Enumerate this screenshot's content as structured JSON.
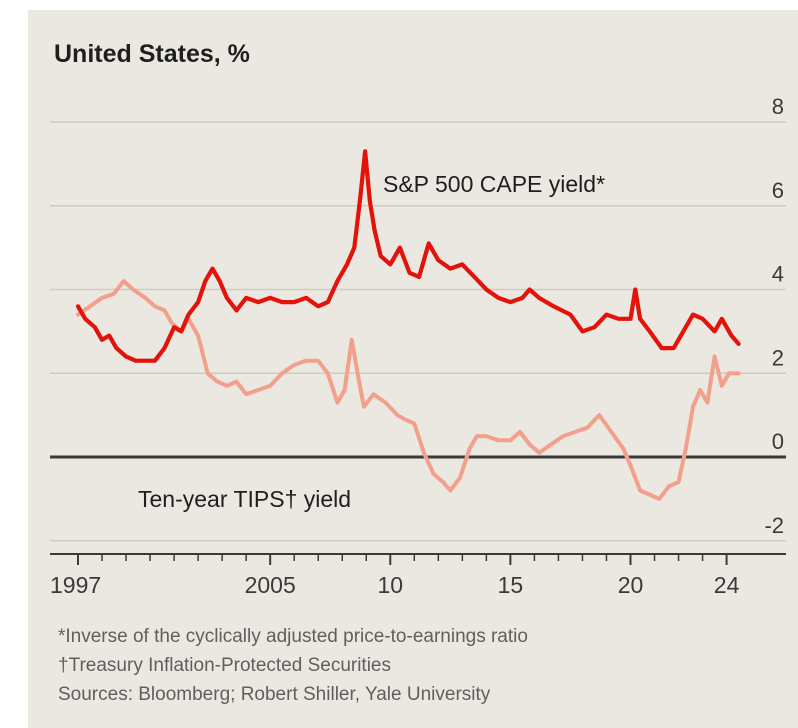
{
  "chart_data": {
    "type": "line",
    "title": "United States, %",
    "y_ticks": [
      8,
      6,
      4,
      2,
      0,
      -2
    ],
    "y_tick_labels": [
      "8",
      "6",
      "4",
      "2",
      "0",
      "-2"
    ],
    "ylim": [
      -2.5,
      8.2
    ],
    "xlim": [
      1997,
      2024.6
    ],
    "x_tick_labels": [
      {
        "year": 1997,
        "label": "1997"
      },
      {
        "year": 2005,
        "label": "2005"
      },
      {
        "year": 2010,
        "label": "10"
      },
      {
        "year": 2015,
        "label": "15"
      },
      {
        "year": 2020,
        "label": "20"
      },
      {
        "year": 2024,
        "label": "24"
      }
    ],
    "grid": true,
    "series": [
      {
        "name": "S&P 500 CAPE yield*",
        "color": "#e3120b",
        "points": [
          [
            1997.0,
            3.6
          ],
          [
            1997.3,
            3.3
          ],
          [
            1997.7,
            3.1
          ],
          [
            1998.0,
            2.8
          ],
          [
            1998.3,
            2.9
          ],
          [
            1998.6,
            2.6
          ],
          [
            1999.0,
            2.4
          ],
          [
            1999.4,
            2.3
          ],
          [
            1999.8,
            2.3
          ],
          [
            2000.2,
            2.3
          ],
          [
            2000.6,
            2.6
          ],
          [
            2001.0,
            3.1
          ],
          [
            2001.3,
            3.0
          ],
          [
            2001.6,
            3.4
          ],
          [
            2002.0,
            3.7
          ],
          [
            2002.3,
            4.2
          ],
          [
            2002.6,
            4.5
          ],
          [
            2002.9,
            4.2
          ],
          [
            2003.2,
            3.8
          ],
          [
            2003.6,
            3.5
          ],
          [
            2004.0,
            3.8
          ],
          [
            2004.5,
            3.7
          ],
          [
            2005.0,
            3.8
          ],
          [
            2005.5,
            3.7
          ],
          [
            2006.0,
            3.7
          ],
          [
            2006.5,
            3.8
          ],
          [
            2007.0,
            3.6
          ],
          [
            2007.4,
            3.7
          ],
          [
            2007.8,
            4.2
          ],
          [
            2008.2,
            4.6
          ],
          [
            2008.5,
            5.0
          ],
          [
            2008.75,
            6.2
          ],
          [
            2008.95,
            7.3
          ],
          [
            2009.15,
            6.1
          ],
          [
            2009.35,
            5.4
          ],
          [
            2009.6,
            4.8
          ],
          [
            2010.0,
            4.6
          ],
          [
            2010.4,
            5.0
          ],
          [
            2010.8,
            4.4
          ],
          [
            2011.2,
            4.3
          ],
          [
            2011.6,
            5.1
          ],
          [
            2012.0,
            4.7
          ],
          [
            2012.5,
            4.5
          ],
          [
            2013.0,
            4.6
          ],
          [
            2013.5,
            4.3
          ],
          [
            2014.0,
            4.0
          ],
          [
            2014.5,
            3.8
          ],
          [
            2015.0,
            3.7
          ],
          [
            2015.5,
            3.8
          ],
          [
            2015.8,
            4.0
          ],
          [
            2016.2,
            3.8
          ],
          [
            2016.8,
            3.6
          ],
          [
            2017.5,
            3.4
          ],
          [
            2018.0,
            3.0
          ],
          [
            2018.5,
            3.1
          ],
          [
            2019.0,
            3.4
          ],
          [
            2019.5,
            3.3
          ],
          [
            2020.0,
            3.3
          ],
          [
            2020.2,
            4.0
          ],
          [
            2020.4,
            3.3
          ],
          [
            2020.8,
            3.0
          ],
          [
            2021.3,
            2.6
          ],
          [
            2021.8,
            2.6
          ],
          [
            2022.2,
            3.0
          ],
          [
            2022.6,
            3.4
          ],
          [
            2023.0,
            3.3
          ],
          [
            2023.5,
            3.0
          ],
          [
            2023.8,
            3.3
          ],
          [
            2024.2,
            2.9
          ],
          [
            2024.5,
            2.7
          ]
        ]
      },
      {
        "name": "Ten-year TIPS† yield",
        "color": "#f2a08c",
        "points": [
          [
            1997.0,
            3.4
          ],
          [
            1997.5,
            3.6
          ],
          [
            1998.0,
            3.8
          ],
          [
            1998.5,
            3.9
          ],
          [
            1998.9,
            4.2
          ],
          [
            1999.3,
            4.0
          ],
          [
            1999.8,
            3.8
          ],
          [
            2000.2,
            3.6
          ],
          [
            2000.6,
            3.5
          ],
          [
            2000.9,
            3.2
          ],
          [
            2001.3,
            3.0
          ],
          [
            2001.6,
            3.3
          ],
          [
            2002.0,
            2.9
          ],
          [
            2002.4,
            2.0
          ],
          [
            2002.8,
            1.8
          ],
          [
            2003.2,
            1.7
          ],
          [
            2003.6,
            1.8
          ],
          [
            2004.0,
            1.5
          ],
          [
            2004.5,
            1.6
          ],
          [
            2005.0,
            1.7
          ],
          [
            2005.5,
            2.0
          ],
          [
            2006.0,
            2.2
          ],
          [
            2006.5,
            2.3
          ],
          [
            2007.0,
            2.3
          ],
          [
            2007.4,
            2.0
          ],
          [
            2007.8,
            1.3
          ],
          [
            2008.1,
            1.6
          ],
          [
            2008.4,
            2.8
          ],
          [
            2008.7,
            1.8
          ],
          [
            2008.9,
            1.2
          ],
          [
            2009.3,
            1.5
          ],
          [
            2009.8,
            1.3
          ],
          [
            2010.3,
            1.0
          ],
          [
            2010.6,
            0.9
          ],
          [
            2011.0,
            0.8
          ],
          [
            2011.4,
            0.1
          ],
          [
            2011.8,
            -0.4
          ],
          [
            2012.2,
            -0.6
          ],
          [
            2012.5,
            -0.8
          ],
          [
            2012.9,
            -0.5
          ],
          [
            2013.3,
            0.2
          ],
          [
            2013.6,
            0.5
          ],
          [
            2014.0,
            0.5
          ],
          [
            2014.5,
            0.4
          ],
          [
            2015.0,
            0.4
          ],
          [
            2015.4,
            0.6
          ],
          [
            2015.8,
            0.3
          ],
          [
            2016.2,
            0.1
          ],
          [
            2016.7,
            0.3
          ],
          [
            2017.2,
            0.5
          ],
          [
            2017.7,
            0.6
          ],
          [
            2018.2,
            0.7
          ],
          [
            2018.7,
            1.0
          ],
          [
            2019.2,
            0.6
          ],
          [
            2019.7,
            0.2
          ],
          [
            2020.0,
            -0.2
          ],
          [
            2020.4,
            -0.8
          ],
          [
            2020.8,
            -0.9
          ],
          [
            2021.2,
            -1.0
          ],
          [
            2021.6,
            -0.7
          ],
          [
            2022.0,
            -0.6
          ],
          [
            2022.3,
            0.2
          ],
          [
            2022.6,
            1.2
          ],
          [
            2022.9,
            1.6
          ],
          [
            2023.2,
            1.3
          ],
          [
            2023.5,
            2.4
          ],
          [
            2023.8,
            1.7
          ],
          [
            2024.1,
            2.0
          ],
          [
            2024.5,
            2.0
          ]
        ]
      }
    ],
    "annotations": [
      "S&P 500 CAPE yield*",
      "Ten-year TIPS† yield"
    ]
  },
  "footnotes": {
    "cape": "*Inverse of the cyclically adjusted price-to-earnings ratio",
    "tips": "†Treasury Inflation-Protected Securities",
    "sources": "Sources: Bloomberg; Robert Shiller, Yale University"
  },
  "colors": {
    "background": "#ebe8e1",
    "grid": "#cfcbc3",
    "zero_line": "#3a3a3a",
    "axis_text": "#3a3a3a"
  }
}
